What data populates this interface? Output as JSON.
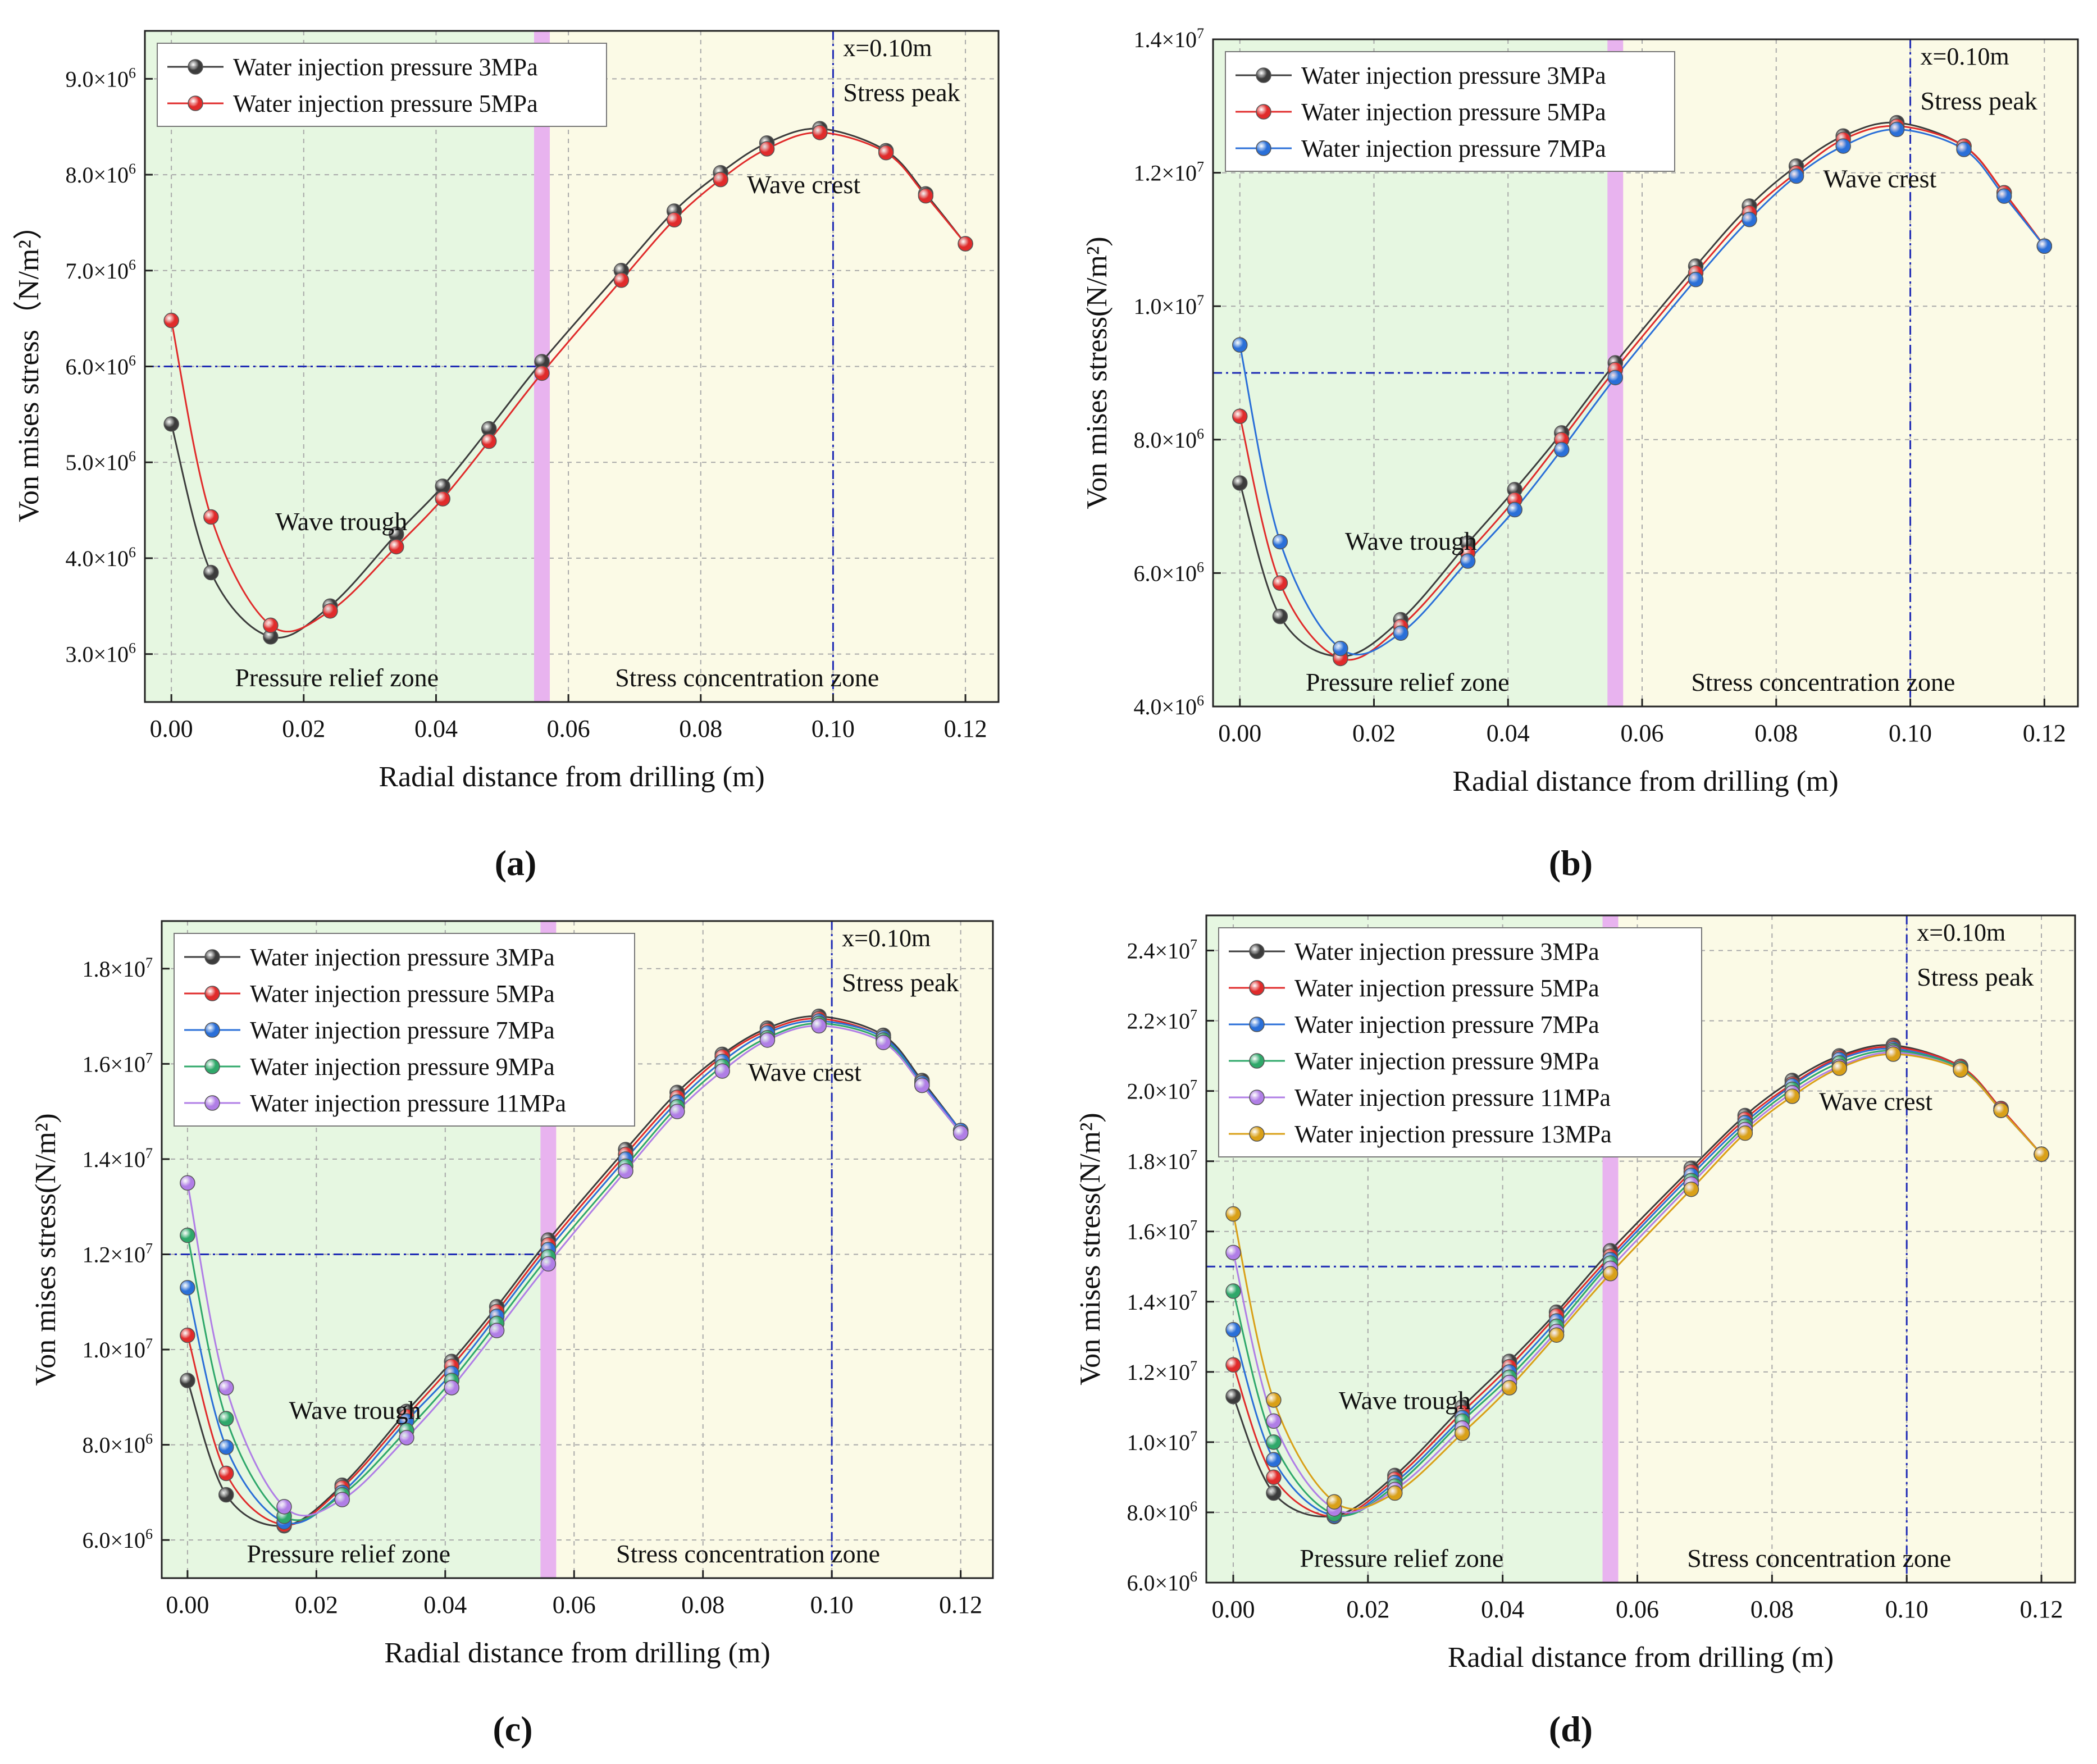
{
  "figure": {
    "x_label": "Radial distance from drilling (m)",
    "annotations": {
      "trough": "Wave trough",
      "crest": "Wave crest",
      "peak": "Stress peak",
      "relief": "Pressure relief zone",
      "concentration": "Stress concentration zone",
      "xmark": "x=0.10m"
    },
    "colors": {
      "relief_zone": "#e6f7e1",
      "concentration_zone": "#fbfae6",
      "boundary_band": "#e8b3ef",
      "guide_line": "#1f2bb5",
      "series": [
        "#3c3c3c",
        "#e02b2b",
        "#2a6fd8",
        "#2fa86a",
        "#b07ee6",
        "#d9a018"
      ]
    }
  },
  "chart_data": [
    {
      "type": "line",
      "panel_label": "(a)",
      "ylabel": "Von mises stress（N/m²）",
      "xlim": [
        -0.004,
        0.125
      ],
      "ylim": [
        2500000.0,
        9500000.0
      ],
      "y_ticks": [
        {
          "v": 3000000.0,
          "m": "3.0×10",
          "e": "6"
        },
        {
          "v": 4000000.0,
          "m": "4.0×10",
          "e": "6"
        },
        {
          "v": 5000000.0,
          "m": "5.0×10",
          "e": "6"
        },
        {
          "v": 6000000.0,
          "m": "6.0×10",
          "e": "6"
        },
        {
          "v": 7000000.0,
          "m": "7.0×10",
          "e": "6"
        },
        {
          "v": 8000000.0,
          "m": "8.0×10",
          "e": "6"
        },
        {
          "v": 9000000.0,
          "m": "9.0×10",
          "e": "6"
        }
      ],
      "x_ticks": [
        "0.00",
        "0.02",
        "0.04",
        "0.06",
        "0.08",
        "0.10",
        "0.12"
      ],
      "boundary_x": 0.056,
      "hline_y": 6000000.0,
      "x": [
        0.0,
        0.006,
        0.015,
        0.024,
        0.034,
        0.041,
        0.048,
        0.056,
        0.068,
        0.076,
        0.083,
        0.09,
        0.098,
        0.108,
        0.114,
        0.12
      ],
      "series": [
        {
          "name": "Water injection pressure 3MPa",
          "values": [
            5400000.0,
            3850000.0,
            3180000.0,
            3500000.0,
            4250000.0,
            4750000.0,
            5350000.0,
            6050000.0,
            7000000.0,
            7620000.0,
            8020000.0,
            8330000.0,
            8480000.0,
            8250000.0,
            7800000.0,
            7280000.0
          ]
        },
        {
          "name": "Water injection pressure 5MPa",
          "values": [
            6480000.0,
            4430000.0,
            3300000.0,
            3450000.0,
            4120000.0,
            4620000.0,
            5220000.0,
            5930000.0,
            6900000.0,
            7530000.0,
            7950000.0,
            8270000.0,
            8440000.0,
            8230000.0,
            7780000.0,
            7280000.0
          ]
        }
      ]
    },
    {
      "type": "line",
      "panel_label": "(b)",
      "ylabel": "Von mises stress(N/m²)",
      "xlim": [
        -0.004,
        0.125
      ],
      "ylim": [
        4000000.0,
        14000000.0
      ],
      "y_ticks": [
        {
          "v": 4000000.0,
          "m": "4.0×10",
          "e": "6"
        },
        {
          "v": 6000000.0,
          "m": "6.0×10",
          "e": "6"
        },
        {
          "v": 8000000.0,
          "m": "8.0×10",
          "e": "6"
        },
        {
          "v": 10000000.0,
          "m": "1.0×10",
          "e": "7"
        },
        {
          "v": 12000000.0,
          "m": "1.2×10",
          "e": "7"
        },
        {
          "v": 14000000.0,
          "m": "1.4×10",
          "e": "7"
        }
      ],
      "x_ticks": [
        "0.00",
        "0.02",
        "0.04",
        "0.06",
        "0.08",
        "0.10",
        "0.12"
      ],
      "boundary_x": 0.056,
      "hline_y": 9000000.0,
      "x": [
        0.0,
        0.006,
        0.015,
        0.024,
        0.034,
        0.041,
        0.048,
        0.056,
        0.068,
        0.076,
        0.083,
        0.09,
        0.098,
        0.108,
        0.114,
        0.12
      ],
      "series": [
        {
          "name": "Water injection pressure 3MPa",
          "values": [
            7350000.0,
            5350000.0,
            4750000.0,
            5300000.0,
            6450000.0,
            7250000.0,
            8100000.0,
            9150000.0,
            10600000.0,
            11500000.0,
            12100000.0,
            12550000.0,
            12750000.0,
            12400000.0,
            11700000.0,
            10900000.0
          ]
        },
        {
          "name": "Water injection pressure 5MPa",
          "values": [
            8350000.0,
            5850000.0,
            4720000.0,
            5200000.0,
            6300000.0,
            7100000.0,
            8000000.0,
            9050000.0,
            10500000.0,
            11400000.0,
            12000000.0,
            12500000.0,
            12700000.0,
            12400000.0,
            11700000.0,
            10900000.0
          ]
        },
        {
          "name": "Water injection pressure 7MPa",
          "values": [
            9420000.0,
            6470000.0,
            4870000.0,
            5100000.0,
            6180000.0,
            6950000.0,
            7850000.0,
            8930000.0,
            10400000.0,
            11300000.0,
            11950000.0,
            12400000.0,
            12650000.0,
            12350000.0,
            11650000.0,
            10900000.0
          ]
        }
      ]
    },
    {
      "type": "line",
      "panel_label": "(c)",
      "ylabel": "Von mises stress(N/m²)",
      "xlim": [
        -0.004,
        0.125
      ],
      "ylim": [
        5200000.0,
        19000000.0
      ],
      "y_ticks": [
        {
          "v": 6000000.0,
          "m": "6.0×10",
          "e": "6"
        },
        {
          "v": 8000000.0,
          "m": "8.0×10",
          "e": "6"
        },
        {
          "v": 10000000.0,
          "m": "1.0×10",
          "e": "7"
        },
        {
          "v": 12000000.0,
          "m": "1.2×10",
          "e": "7"
        },
        {
          "v": 14000000.0,
          "m": "1.4×10",
          "e": "7"
        },
        {
          "v": 16000000.0,
          "m": "1.6×10",
          "e": "7"
        },
        {
          "v": 18000000.0,
          "m": "1.8×10",
          "e": "7"
        }
      ],
      "x_ticks": [
        "0.00",
        "0.02",
        "0.04",
        "0.06",
        "0.08",
        "0.10",
        "0.12"
      ],
      "boundary_x": 0.056,
      "hline_y": 12000000.0,
      "x": [
        0.0,
        0.006,
        0.015,
        0.024,
        0.034,
        0.041,
        0.048,
        0.056,
        0.068,
        0.076,
        0.083,
        0.09,
        0.098,
        0.108,
        0.114,
        0.12
      ],
      "series": [
        {
          "name": "Water injection pressure 3MPa",
          "values": [
            9350000.0,
            6950000.0,
            6300000.0,
            7150000.0,
            8700000.0,
            9750000.0,
            10900000.0,
            12300000.0,
            14200000.0,
            15400000.0,
            16200000.0,
            16750000.0,
            17000000.0,
            16600000.0,
            15650000.0,
            14600000.0
          ]
        },
        {
          "name": "Water injection pressure 5MPa",
          "values": [
            10300000.0,
            7400000.0,
            6320000.0,
            7100000.0,
            8600000.0,
            9650000.0,
            10800000.0,
            12200000.0,
            14100000.0,
            15300000.0,
            16150000.0,
            16700000.0,
            16950000.0,
            16550000.0,
            15600000.0,
            14600000.0
          ]
        },
        {
          "name": "Water injection pressure 7MPa",
          "values": [
            11300000.0,
            7950000.0,
            6380000.0,
            7000000.0,
            8500000.0,
            9500000.0,
            10700000.0,
            12100000.0,
            14000000.0,
            15200000.0,
            16050000.0,
            16650000.0,
            16900000.0,
            16550000.0,
            15600000.0,
            14600000.0
          ]
        },
        {
          "name": "Water injection pressure 9MPa",
          "values": [
            12400000.0,
            8550000.0,
            6500000.0,
            6950000.0,
            8300000.0,
            9350000.0,
            10550000.0,
            11950000.0,
            13850000.0,
            15100000.0,
            15950000.0,
            16550000.0,
            16850000.0,
            16500000.0,
            15550000.0,
            14550000.0
          ]
        },
        {
          "name": "Water injection pressure 11MPa",
          "values": [
            13500000.0,
            9200000.0,
            6700000.0,
            6850000.0,
            8150000.0,
            9200000.0,
            10400000.0,
            11800000.0,
            13750000.0,
            15000000.0,
            15850000.0,
            16500000.0,
            16800000.0,
            16450000.0,
            15550000.0,
            14550000.0
          ]
        }
      ]
    },
    {
      "type": "line",
      "panel_label": "(d)",
      "ylabel": "Von mises stress(N/m²)",
      "xlim": [
        -0.004,
        0.125
      ],
      "ylim": [
        6000000.0,
        25000000.0
      ],
      "y_ticks": [
        {
          "v": 6000000.0,
          "m": "6.0×10",
          "e": "6"
        },
        {
          "v": 8000000.0,
          "m": "8.0×10",
          "e": "6"
        },
        {
          "v": 10000000.0,
          "m": "1.0×10",
          "e": "7"
        },
        {
          "v": 12000000.0,
          "m": "1.2×10",
          "e": "7"
        },
        {
          "v": 14000000.0,
          "m": "1.4×10",
          "e": "7"
        },
        {
          "v": 16000000.0,
          "m": "1.6×10",
          "e": "7"
        },
        {
          "v": 18000000.0,
          "m": "1.8×10",
          "e": "7"
        },
        {
          "v": 20000000.0,
          "m": "2.0×10",
          "e": "7"
        },
        {
          "v": 22000000.0,
          "m": "2.2×10",
          "e": "7"
        },
        {
          "v": 24000000.0,
          "m": "2.4×10",
          "e": "7"
        }
      ],
      "x_ticks": [
        "0.00",
        "0.02",
        "0.04",
        "0.06",
        "0.08",
        "0.10",
        "0.12"
      ],
      "boundary_x": 0.056,
      "hline_y": 15000000.0,
      "x": [
        0.0,
        0.006,
        0.015,
        0.024,
        0.034,
        0.041,
        0.048,
        0.056,
        0.068,
        0.076,
        0.083,
        0.09,
        0.098,
        0.108,
        0.114,
        0.12
      ],
      "series": [
        {
          "name": "Water injection pressure 3MPa",
          "values": [
            11300000.0,
            8550000.0,
            7900000.0,
            9050000.0,
            11000000.0,
            12300000.0,
            13700000.0,
            15450000.0,
            17800000.0,
            19300000.0,
            20300000.0,
            21000000.0,
            21300000.0,
            20700000.0,
            19500000.0,
            18200000.0
          ]
        },
        {
          "name": "Water injection pressure 5MPa",
          "values": [
            12200000.0,
            9000000.0,
            7880000.0,
            8950000.0,
            10850000.0,
            12150000.0,
            13600000.0,
            15300000.0,
            17700000.0,
            19200000.0,
            20200000.0,
            20950000.0,
            21250000.0,
            20700000.0,
            19500000.0,
            18200000.0
          ]
        },
        {
          "name": "Water injection pressure 7MPa",
          "values": [
            13200000.0,
            9500000.0,
            7900000.0,
            8850000.0,
            10700000.0,
            12000000.0,
            13450000.0,
            15200000.0,
            17600000.0,
            19100000.0,
            20150000.0,
            20900000.0,
            21200000.0,
            20650000.0,
            19450000.0,
            18200000.0
          ]
        },
        {
          "name": "Water injection pressure 9MPa",
          "values": [
            14300000.0,
            10000000.0,
            7950000.0,
            8750000.0,
            10600000.0,
            11850000.0,
            13300000.0,
            15100000.0,
            17450000.0,
            19000000.0,
            20050000.0,
            20800000.0,
            21150000.0,
            20650000.0,
            19450000.0,
            18200000.0
          ]
        },
        {
          "name": "Water injection pressure 11MPa",
          "values": [
            15400000.0,
            10600000.0,
            8100000.0,
            8650000.0,
            10400000.0,
            11700000.0,
            13150000.0,
            14950000.0,
            17350000.0,
            18900000.0,
            19950000.0,
            20700000.0,
            21100000.0,
            20600000.0,
            19450000.0,
            18200000.0
          ]
        },
        {
          "name": "Water injection pressure 13MPa",
          "values": [
            16500000.0,
            11200000.0,
            8300000.0,
            8550000.0,
            10250000.0,
            11550000.0,
            13050000.0,
            14800000.0,
            17200000.0,
            18800000.0,
            19850000.0,
            20650000.0,
            21050000.0,
            20600000.0,
            19450000.0,
            18200000.0
          ]
        }
      ]
    }
  ]
}
